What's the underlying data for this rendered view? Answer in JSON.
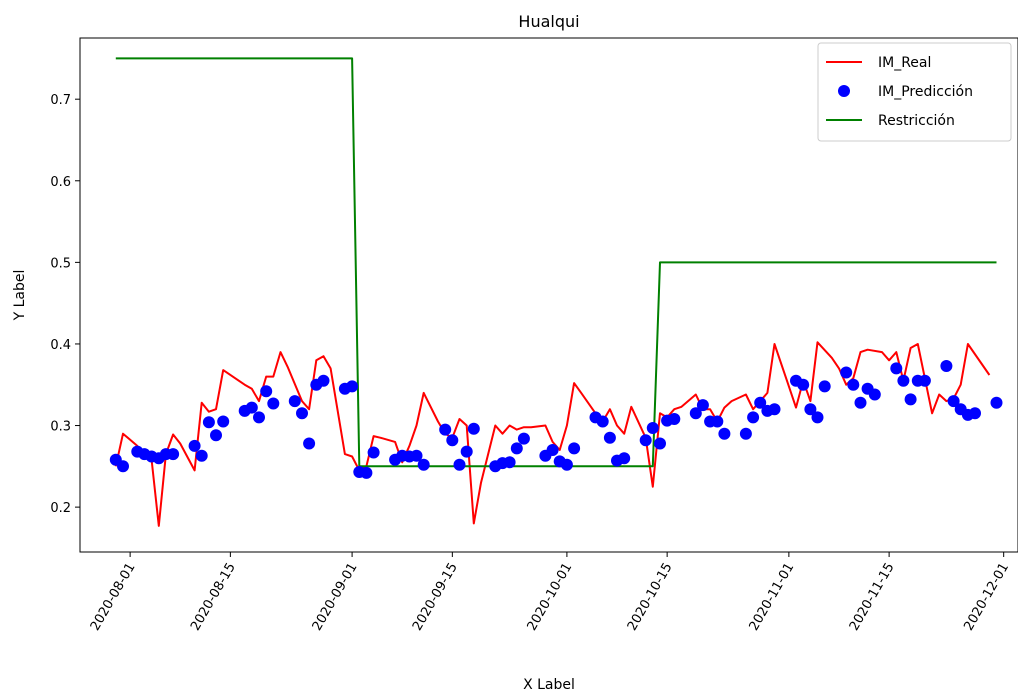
{
  "chart_data": {
    "type": "line",
    "title": "Hualqui",
    "xlabel": "X Label",
    "ylabel": "Y Label",
    "x_ticks": [
      "2020-08-01",
      "2020-08-15",
      "2020-09-01",
      "2020-09-15",
      "2020-10-01",
      "2020-10-15",
      "2020-11-01",
      "2020-11-15",
      "2020-12-01"
    ],
    "y_ticks": [
      0.2,
      0.3,
      0.4,
      0.5,
      0.6,
      0.7
    ],
    "xlim": [
      "2020-07-25",
      "2020-12-03"
    ],
    "ylim": [
      0.145,
      0.775
    ],
    "grid": false,
    "legend_position": "upper right",
    "series": [
      {
        "name": "IM_Real",
        "kind": "line",
        "color": "#ff0000",
        "x": [
          "2020-07-30",
          "2020-07-31",
          "2020-08-02",
          "2020-08-03",
          "2020-08-04",
          "2020-08-05",
          "2020-08-06",
          "2020-08-07",
          "2020-08-08",
          "2020-08-10",
          "2020-08-11",
          "2020-08-12",
          "2020-08-13",
          "2020-08-14",
          "2020-08-17",
          "2020-08-18",
          "2020-08-19",
          "2020-08-20",
          "2020-08-21",
          "2020-08-22",
          "2020-08-23",
          "2020-08-25",
          "2020-08-26",
          "2020-08-27",
          "2020-08-28",
          "2020-08-29",
          "2020-08-31",
          "2020-09-01",
          "2020-09-02",
          "2020-09-03",
          "2020-09-04",
          "2020-09-05",
          "2020-09-07",
          "2020-09-08",
          "2020-09-09",
          "2020-09-10",
          "2020-09-11",
          "2020-09-13",
          "2020-09-14",
          "2020-09-15",
          "2020-09-16",
          "2020-09-17",
          "2020-09-18",
          "2020-09-19",
          "2020-09-21",
          "2020-09-22",
          "2020-09-23",
          "2020-09-24",
          "2020-09-25",
          "2020-09-26",
          "2020-09-28",
          "2020-09-29",
          "2020-09-30",
          "2020-10-01",
          "2020-10-02",
          "2020-10-03",
          "2020-10-05",
          "2020-10-06",
          "2020-10-07",
          "2020-10-08",
          "2020-10-09",
          "2020-10-10",
          "2020-10-12",
          "2020-10-13",
          "2020-10-14",
          "2020-10-15",
          "2020-10-16",
          "2020-10-17",
          "2020-10-19",
          "2020-10-20",
          "2020-10-21",
          "2020-10-22",
          "2020-10-23",
          "2020-10-24",
          "2020-10-26",
          "2020-10-27",
          "2020-10-28",
          "2020-10-29",
          "2020-10-30",
          "2020-11-01",
          "2020-11-02",
          "2020-11-03",
          "2020-11-04",
          "2020-11-05",
          "2020-11-07",
          "2020-11-08",
          "2020-11-09",
          "2020-11-10",
          "2020-11-11",
          "2020-11-12",
          "2020-11-14",
          "2020-11-15",
          "2020-11-16",
          "2020-11-17",
          "2020-11-18",
          "2020-11-19",
          "2020-11-21",
          "2020-11-22",
          "2020-11-23",
          "2020-11-24",
          "2020-11-25",
          "2020-11-26",
          "2020-11-29"
        ],
        "y": [
          0.25,
          0.29,
          0.275,
          0.26,
          0.258,
          0.177,
          0.265,
          0.289,
          0.278,
          0.245,
          0.328,
          0.317,
          0.32,
          0.368,
          0.35,
          0.345,
          0.33,
          0.36,
          0.36,
          0.39,
          0.372,
          0.33,
          0.32,
          0.38,
          0.385,
          0.37,
          0.265,
          0.262,
          0.245,
          0.25,
          0.287,
          0.285,
          0.28,
          0.255,
          0.275,
          0.3,
          0.34,
          0.305,
          0.29,
          0.285,
          0.308,
          0.3,
          0.18,
          0.23,
          0.3,
          0.29,
          0.3,
          0.295,
          0.298,
          0.298,
          0.3,
          0.28,
          0.27,
          0.3,
          0.352,
          0.34,
          0.315,
          0.305,
          0.32,
          0.3,
          0.29,
          0.323,
          0.285,
          0.225,
          0.315,
          0.31,
          0.32,
          0.323,
          0.338,
          0.32,
          0.32,
          0.305,
          0.322,
          0.33,
          0.338,
          0.32,
          0.33,
          0.34,
          0.4,
          0.348,
          0.322,
          0.355,
          0.33,
          0.402,
          0.383,
          0.37,
          0.35,
          0.358,
          0.39,
          0.393,
          0.39,
          0.38,
          0.39,
          0.355,
          0.395,
          0.4,
          0.315,
          0.338,
          0.33,
          0.333,
          0.35,
          0.4,
          0.362
        ],
        "legend_name": "IM_Real"
      },
      {
        "name": "IM_Predicción",
        "kind": "scatter",
        "color": "#0000ff",
        "x": [
          "2020-07-30",
          "2020-07-31",
          "2020-08-02",
          "2020-08-03",
          "2020-08-04",
          "2020-08-05",
          "2020-08-06",
          "2020-08-07",
          "2020-08-10",
          "2020-08-11",
          "2020-08-12",
          "2020-08-13",
          "2020-08-14",
          "2020-08-17",
          "2020-08-18",
          "2020-08-19",
          "2020-08-20",
          "2020-08-21",
          "2020-08-24",
          "2020-08-25",
          "2020-08-26",
          "2020-08-27",
          "2020-08-28",
          "2020-08-31",
          "2020-09-01",
          "2020-09-02",
          "2020-09-03",
          "2020-09-04",
          "2020-09-07",
          "2020-09-08",
          "2020-09-09",
          "2020-09-10",
          "2020-09-11",
          "2020-09-14",
          "2020-09-15",
          "2020-09-16",
          "2020-09-17",
          "2020-09-18",
          "2020-09-21",
          "2020-09-22",
          "2020-09-23",
          "2020-09-24",
          "2020-09-25",
          "2020-09-28",
          "2020-09-29",
          "2020-09-30",
          "2020-10-01",
          "2020-10-02",
          "2020-10-05",
          "2020-10-06",
          "2020-10-07",
          "2020-10-08",
          "2020-10-09",
          "2020-10-12",
          "2020-10-13",
          "2020-10-14",
          "2020-10-15",
          "2020-10-16",
          "2020-10-19",
          "2020-10-20",
          "2020-10-21",
          "2020-10-22",
          "2020-10-23",
          "2020-10-26",
          "2020-10-27",
          "2020-10-28",
          "2020-10-29",
          "2020-10-30",
          "2020-11-02",
          "2020-11-03",
          "2020-11-04",
          "2020-11-05",
          "2020-11-06",
          "2020-11-09",
          "2020-11-10",
          "2020-11-11",
          "2020-11-12",
          "2020-11-13",
          "2020-11-16",
          "2020-11-17",
          "2020-11-18",
          "2020-11-19",
          "2020-11-20",
          "2020-11-23",
          "2020-11-24",
          "2020-11-25",
          "2020-11-26",
          "2020-11-27",
          "2020-11-30"
        ],
        "y": [
          0.258,
          0.25,
          0.268,
          0.265,
          0.262,
          0.26,
          0.265,
          0.265,
          0.275,
          0.263,
          0.304,
          0.288,
          0.305,
          0.318,
          0.322,
          0.31,
          0.342,
          0.327,
          0.33,
          0.315,
          0.278,
          0.35,
          0.355,
          0.345,
          0.348,
          0.243,
          0.242,
          0.267,
          0.258,
          0.263,
          0.262,
          0.263,
          0.252,
          0.295,
          0.282,
          0.252,
          0.268,
          0.296,
          0.25,
          0.254,
          0.255,
          0.272,
          0.284,
          0.263,
          0.27,
          0.256,
          0.252,
          0.272,
          0.31,
          0.305,
          0.285,
          0.257,
          0.26,
          0.282,
          0.297,
          0.278,
          0.306,
          0.308,
          0.315,
          0.325,
          0.305,
          0.305,
          0.29,
          0.29,
          0.31,
          0.328,
          0.318,
          0.32,
          0.355,
          0.35,
          0.32,
          0.31,
          0.348,
          0.365,
          0.35,
          0.328,
          0.345,
          0.338,
          0.37,
          0.355,
          0.332,
          0.355,
          0.355,
          0.373,
          0.33,
          0.32,
          0.313,
          0.315,
          0.328
        ],
        "legend_name": "IM_Predicción"
      },
      {
        "name": "Restricción",
        "kind": "line",
        "color": "#008000",
        "x": [
          "2020-07-30",
          "2020-09-01",
          "2020-09-02",
          "2020-10-13",
          "2020-10-14",
          "2020-11-30"
        ],
        "y": [
          0.75,
          0.75,
          0.25,
          0.25,
          0.5,
          0.5
        ],
        "legend_name": "Restricción"
      }
    ]
  }
}
